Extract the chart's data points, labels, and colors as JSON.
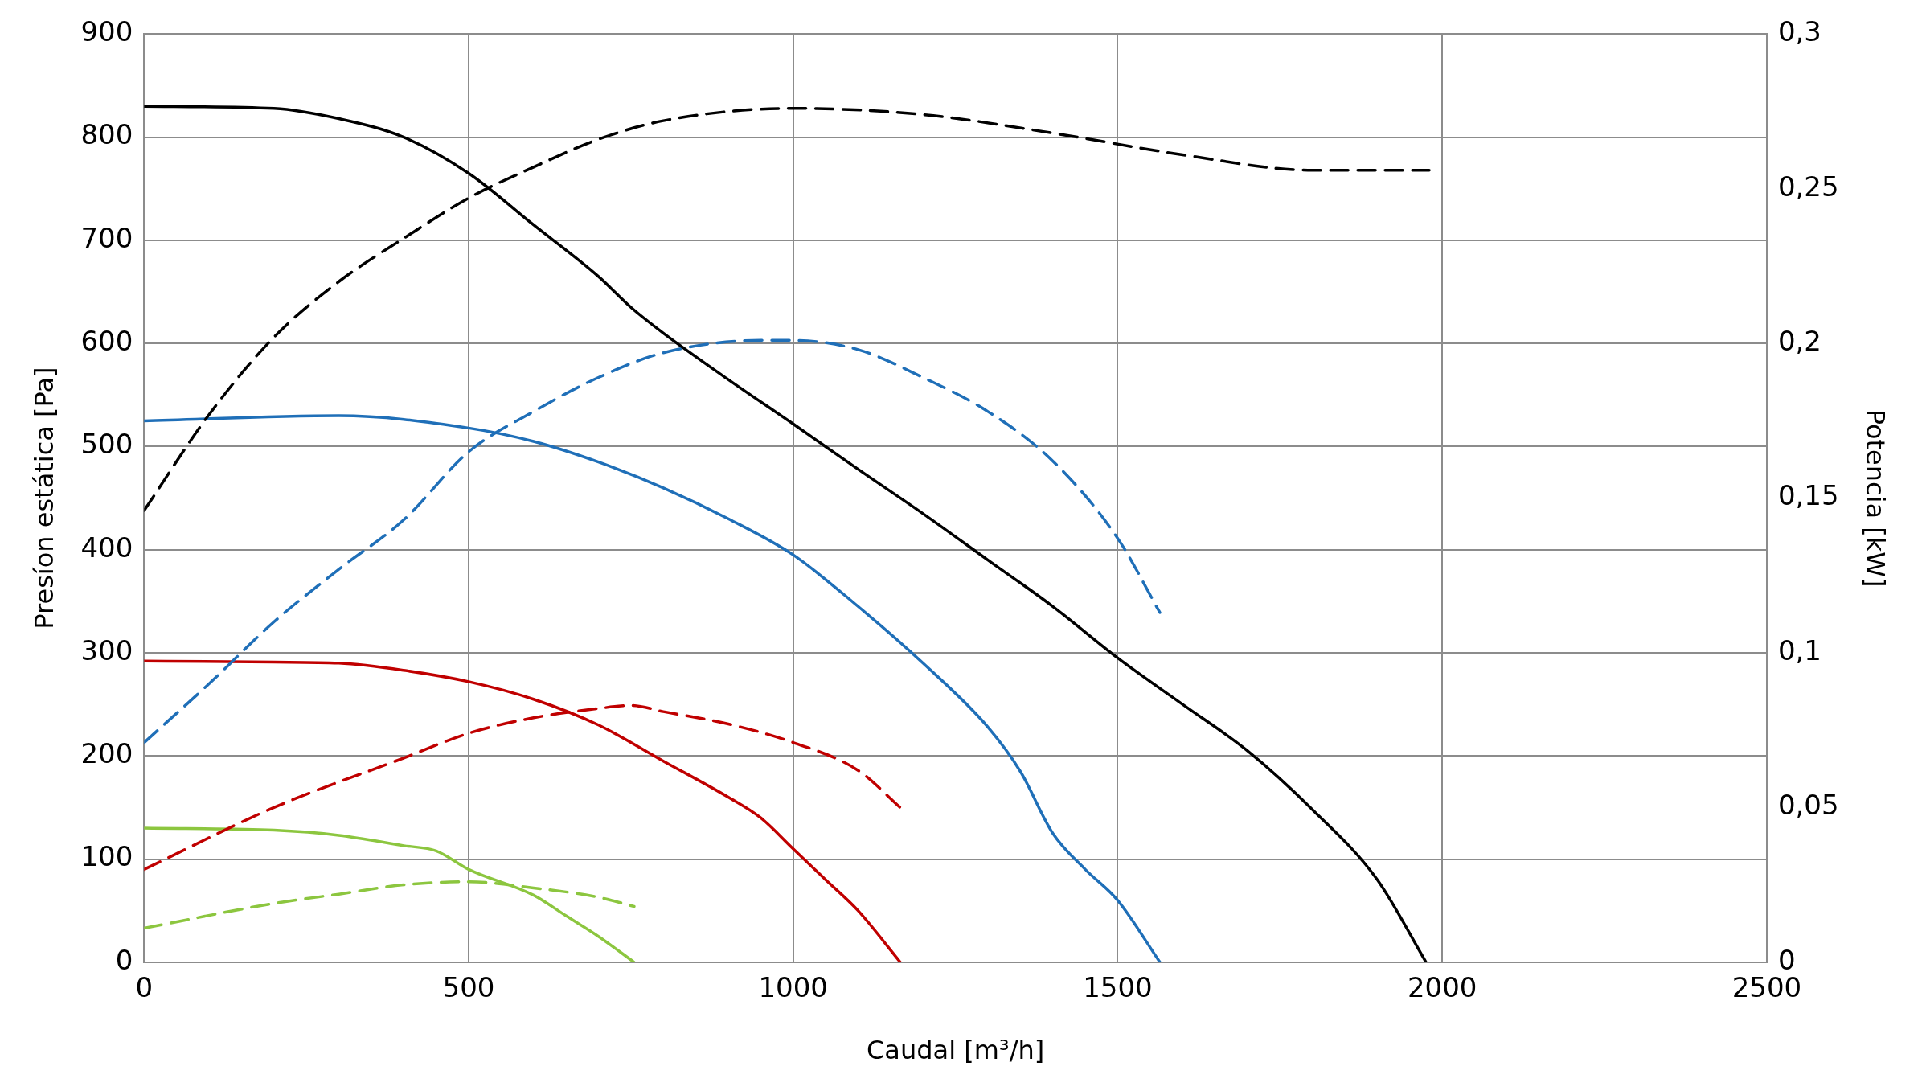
{
  "chart_data": {
    "type": "line",
    "xlabel": "Caudal [m³/h]",
    "ylabel": "Presíon estática [Pa]",
    "y2label": "Potencia [kW]",
    "xlim": [
      0,
      2500
    ],
    "xticks": [
      0,
      500,
      1000,
      1500,
      2000,
      2500
    ],
    "ylim": [
      0,
      900
    ],
    "yticks": [
      0,
      100,
      200,
      300,
      400,
      500,
      600,
      700,
      800,
      900
    ],
    "y2lim": [
      0,
      0.3
    ],
    "y2ticks": [
      0,
      {
        "value": 0.05,
        "label": "0,05"
      },
      {
        "value": 0.1,
        "label": "0,1"
      },
      {
        "value": 0.15,
        "label": "0,15"
      },
      {
        "value": 0.2,
        "label": "0,2"
      },
      {
        "value": 0.25,
        "label": "0,25"
      },
      {
        "value": 0.3,
        "label": "0,3"
      }
    ],
    "grid": true,
    "legend": false,
    "marker": "none",
    "series": [
      {
        "color": "#000000",
        "line_style": "solid",
        "x": [
          0,
          200,
          300,
          400,
          500,
          600,
          700,
          750,
          800,
          900,
          1000,
          1100,
          1200,
          1300,
          1400,
          1500,
          1600,
          1700,
          1800,
          1900,
          1975
        ],
        "values": [
          830,
          828,
          818,
          800,
          765,
          715,
          665,
          635,
          610,
          565,
          522,
          478,
          435,
          390,
          345,
          295,
          250,
          205,
          148,
          80,
          0
        ]
      },
      {
        "color": "#000000",
        "line_style": "dashed",
        "axis": "y2",
        "x": [
          0,
          100,
          200,
          300,
          400,
          500,
          600,
          700,
          800,
          1000,
          1200,
          1400,
          1600,
          1800,
          1900,
          1980
        ],
        "values": [
          0.146,
          0.177,
          0.202,
          0.22,
          0.234,
          0.247,
          0.257,
          0.266,
          0.272,
          0.276,
          0.274,
          0.268,
          0.261,
          0.256,
          0.256,
          0.256
        ]
      },
      {
        "color": "#1f6fb8",
        "line_style": "solid",
        "x": [
          0,
          300,
          500,
          600,
          700,
          800,
          900,
          1000,
          1100,
          1200,
          1300,
          1350,
          1400,
          1450,
          1500,
          1565
        ],
        "values": [
          525,
          530,
          518,
          505,
          485,
          460,
          430,
          395,
          345,
          290,
          228,
          185,
          125,
          90,
          60,
          0
        ]
      },
      {
        "color": "#1f6fb8",
        "line_style": "dashed",
        "axis": "y2",
        "x": [
          0,
          100,
          200,
          300,
          400,
          500,
          600,
          700,
          800,
          950,
          1000,
          1100,
          1200,
          1300,
          1400,
          1500,
          1565
        ],
        "values": [
          0.071,
          0.09,
          0.11,
          0.127,
          0.143,
          0.165,
          0.178,
          0.189,
          0.197,
          0.201,
          0.201,
          0.198,
          0.189,
          0.178,
          0.162,
          0.137,
          0.113
        ]
      },
      {
        "color": "#c00000",
        "line_style": "solid",
        "x": [
          0,
          200,
          300,
          400,
          500,
          600,
          700,
          800,
          900,
          950,
          1000,
          1050,
          1100,
          1165
        ],
        "values": [
          292,
          291,
          290,
          283,
          272,
          255,
          230,
          195,
          160,
          140,
          110,
          80,
          50,
          0
        ]
      },
      {
        "color": "#c00000",
        "line_style": "dashed",
        "axis": "y2",
        "x": [
          0,
          200,
          400,
          500,
          600,
          700,
          750,
          800,
          900,
          1000,
          1100,
          1165
        ],
        "values": [
          0.03,
          0.05,
          0.066,
          0.074,
          0.079,
          0.082,
          0.083,
          0.081,
          0.077,
          0.071,
          0.062,
          0.05
        ]
      },
      {
        "color": "#8cc63f",
        "line_style": "solid",
        "x": [
          0,
          200,
          300,
          400,
          450,
          500,
          600,
          650,
          700,
          755
        ],
        "values": [
          130,
          128,
          123,
          113,
          108,
          90,
          65,
          45,
          25,
          0
        ]
      },
      {
        "color": "#8cc63f",
        "line_style": "dashed",
        "axis": "y2",
        "x": [
          0,
          200,
          300,
          400,
          500,
          600,
          700,
          755
        ],
        "values": [
          0.011,
          0.019,
          0.022,
          0.025,
          0.026,
          0.024,
          0.021,
          0.018
        ]
      }
    ]
  }
}
